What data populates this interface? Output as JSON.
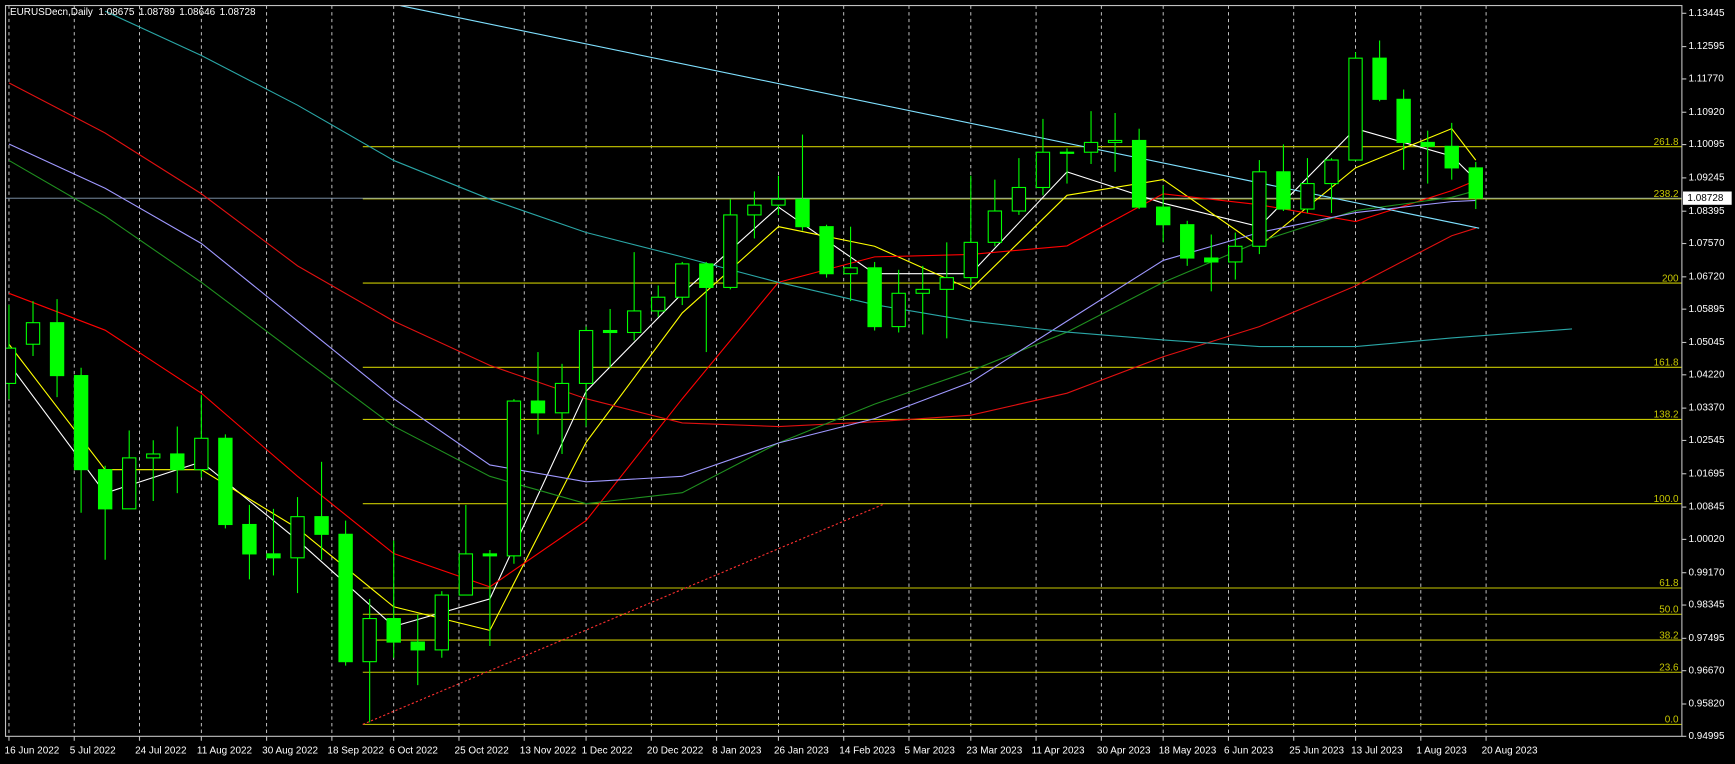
{
  "chart_data": {
    "type": "candlestick",
    "title": "EURUSDecn,Daily",
    "last_ohlc": [
      1.08675,
      1.08789,
      1.08646,
      1.08728
    ],
    "last_price": 1.08728,
    "xlim": [
      "2022-06-15",
      "2023-10-16"
    ],
    "ylim": [
      0.94995,
      1.13643
    ],
    "xticks": [
      {
        "value": "2022-06-16",
        "label": "16 Jun 2022"
      },
      {
        "value": "2022-07-05",
        "label": "5 Jul 2022"
      },
      {
        "value": "2022-07-24",
        "label": "24 Jul 2022"
      },
      {
        "value": "2022-08-11",
        "label": "11 Aug 2022"
      },
      {
        "value": "2022-08-30",
        "label": "30 Aug 2022"
      },
      {
        "value": "2022-09-18",
        "label": "18 Sep 2022"
      },
      {
        "value": "2022-10-06",
        "label": "6 Oct 2022"
      },
      {
        "value": "2022-10-25",
        "label": "25 Oct 2022"
      },
      {
        "value": "2022-11-13",
        "label": "13 Nov 2022"
      },
      {
        "value": "2022-12-01",
        "label": "1 Dec 2022"
      },
      {
        "value": "2022-12-20",
        "label": "20 Dec 2022"
      },
      {
        "value": "2023-01-08",
        "label": "8 Jan 2023"
      },
      {
        "value": "2023-01-26",
        "label": "26 Jan 2023"
      },
      {
        "value": "2023-02-14",
        "label": "14 Feb 2023"
      },
      {
        "value": "2023-03-05",
        "label": "5 Mar 2023"
      },
      {
        "value": "2023-03-23",
        "label": "23 Mar 2023"
      },
      {
        "value": "2023-04-11",
        "label": "11 Apr 2023"
      },
      {
        "value": "2023-04-30",
        "label": "30 Apr 2023"
      },
      {
        "value": "2023-05-18",
        "label": "18 May 2023"
      },
      {
        "value": "2023-06-06",
        "label": "6 Jun 2023"
      },
      {
        "value": "2023-06-25",
        "label": "25 Jun 2023"
      },
      {
        "value": "2023-07-13",
        "label": "13 Jul 2023"
      },
      {
        "value": "2023-08-01",
        "label": "1 Aug 2023"
      },
      {
        "value": "2023-08-20",
        "label": "20 Aug 2023"
      }
    ],
    "yticks": [
      1.13445,
      1.12595,
      {
        "value": 1.1177,
        "label": "1.11770"
      },
      {
        "value": 1.1092,
        "label": "1.10920"
      },
      1.10095,
      1.09245,
      1.08395,
      {
        "value": 1.0757,
        "label": "1.07570"
      },
      {
        "value": 1.0672,
        "label": "1.06720"
      },
      1.05895,
      1.05045,
      {
        "value": 1.0422,
        "label": "1.04220"
      },
      {
        "value": 1.0337,
        "label": "1.03370"
      },
      1.02545,
      1.01695,
      1.00845,
      {
        "value": 1.0002,
        "label": "1.00020"
      },
      {
        "value": 0.9917,
        "label": "0.99170"
      },
      0.98345,
      0.97495,
      {
        "value": 0.9667,
        "label": "0.96670"
      },
      {
        "value": 0.9582,
        "label": "0.95820"
      },
      0.94995
    ],
    "grid": true,
    "candle_color": "#00ff00",
    "candles": {
      "x": [
        "2022-06-16",
        "2022-06-23",
        "2022-06-30",
        "2022-07-07",
        "2022-07-14",
        "2022-07-21",
        "2022-07-28",
        "2022-08-04",
        "2022-08-11",
        "2022-08-18",
        "2022-08-25",
        "2022-09-01",
        "2022-09-08",
        "2022-09-15",
        "2022-09-22",
        "2022-09-29",
        "2022-10-06",
        "2022-10-13",
        "2022-10-20",
        "2022-10-27",
        "2022-11-03",
        "2022-11-10",
        "2022-11-17",
        "2022-11-24",
        "2022-12-01",
        "2022-12-08",
        "2022-12-15",
        "2022-12-22",
        "2022-12-29",
        "2023-01-05",
        "2023-01-12",
        "2023-01-19",
        "2023-01-26",
        "2023-02-02",
        "2023-02-09",
        "2023-02-16",
        "2023-02-23",
        "2023-03-02",
        "2023-03-09",
        "2023-03-16",
        "2023-03-23",
        "2023-03-30",
        "2023-04-06",
        "2023-04-13",
        "2023-04-20",
        "2023-04-27",
        "2023-05-04",
        "2023-05-11",
        "2023-05-18",
        "2023-05-25",
        "2023-06-01",
        "2023-06-08",
        "2023-06-15",
        "2023-06-22",
        "2023-06-29",
        "2023-07-06",
        "2023-07-13",
        "2023-07-20",
        "2023-07-27",
        "2023-08-03",
        "2023-08-10",
        "2023-08-17"
      ],
      "open": [
        1.04,
        1.05,
        1.0555,
        1.042,
        1.018,
        1.008,
        1.021,
        1.022,
        1.018,
        1.026,
        1.004,
        0.9965,
        0.9955,
        1.006,
        1.0015,
        0.969,
        0.98,
        0.974,
        0.972,
        0.986,
        0.9965,
        0.996,
        1.0355,
        1.0325,
        1.04,
        1.0535,
        1.053,
        1.0585,
        1.062,
        1.0705,
        1.0645,
        1.083,
        1.0855,
        1.087,
        1.08,
        1.068,
        1.0695,
        1.0545,
        1.063,
        1.064,
        1.067,
        1.076,
        1.084,
        1.09,
        1.099,
        1.099,
        1.1015,
        1.102,
        1.085,
        1.0805,
        1.072,
        1.071,
        1.075,
        1.094,
        1.0845,
        1.091,
        1.097,
        1.123,
        1.1125,
        1.1015,
        1.1005,
        1.095
      ],
      "high": [
        1.06,
        1.061,
        1.0615,
        1.044,
        1.019,
        1.028,
        1.0255,
        1.029,
        1.037,
        1.027,
        1.009,
        1.008,
        1.011,
        1.02,
        1.005,
        0.985,
        0.9999,
        0.981,
        0.987,
        1.009,
        0.9975,
        1.036,
        1.048,
        1.045,
        1.0545,
        1.059,
        1.0735,
        1.065,
        1.071,
        1.071,
        1.087,
        1.089,
        1.093,
        1.1035,
        1.0805,
        1.08,
        1.071,
        1.069,
        1.07,
        1.076,
        1.093,
        1.092,
        1.0975,
        1.1075,
        1.1,
        1.1095,
        1.109,
        1.105,
        1.0905,
        1.0815,
        1.078,
        1.0785,
        1.097,
        1.101,
        1.0975,
        1.0975,
        1.1245,
        1.1275,
        1.115,
        1.1045,
        1.1065,
        1.0965
      ],
      "low": [
        1.036,
        1.047,
        1.0365,
        1.007,
        0.995,
        1.008,
        1.01,
        1.012,
        1.016,
        1.003,
        0.99,
        0.991,
        0.9865,
        0.995,
        0.968,
        0.9535,
        0.97,
        0.963,
        0.97,
        0.986,
        0.973,
        0.994,
        1.027,
        1.022,
        1.029,
        1.044,
        1.051,
        1.057,
        1.06,
        1.048,
        1.064,
        1.077,
        1.083,
        1.079,
        1.067,
        1.061,
        1.0535,
        1.053,
        1.0525,
        1.0515,
        1.065,
        1.075,
        1.083,
        1.088,
        1.091,
        1.096,
        1.094,
        1.0845,
        1.076,
        1.07,
        1.0635,
        1.0665,
        1.073,
        1.084,
        1.0835,
        1.0835,
        1.097,
        1.112,
        1.0945,
        1.091,
        1.092,
        1.0845
      ],
      "close": [
        1.049,
        1.0555,
        1.042,
        1.018,
        1.008,
        1.021,
        1.022,
        1.018,
        1.026,
        1.004,
        0.9965,
        0.9955,
        1.006,
        1.0015,
        0.969,
        0.98,
        0.974,
        0.972,
        0.986,
        0.9965,
        0.996,
        1.0355,
        1.0325,
        1.04,
        1.0535,
        1.053,
        1.0585,
        1.062,
        1.0705,
        1.0645,
        1.083,
        1.0855,
        1.087,
        1.08,
        1.068,
        1.0695,
        1.0545,
        1.063,
        1.064,
        1.067,
        1.076,
        1.084,
        1.09,
        1.099,
        1.099,
        1.1015,
        1.102,
        1.085,
        1.0805,
        1.072,
        1.071,
        1.075,
        1.094,
        1.0845,
        1.091,
        1.097,
        1.123,
        1.1125,
        1.1015,
        1.1005,
        1.095,
        1.0873
      ]
    },
    "indicators": [
      {
        "color": "#ffffff",
        "x": [
          "2022-06-16",
          "2022-07-14",
          "2022-08-11",
          "2022-09-08",
          "2022-10-06",
          "2022-11-03",
          "2022-12-01",
          "2022-12-29",
          "2023-01-26",
          "2023-02-23",
          "2023-03-23",
          "2023-04-20",
          "2023-05-18",
          "2023-06-15",
          "2023-07-13",
          "2023-08-10",
          "2023-08-17"
        ],
        "values": [
          1.045,
          1.012,
          1.02,
          1.0,
          0.978,
          0.985,
          1.038,
          1.063,
          1.085,
          1.068,
          1.068,
          1.094,
          1.086,
          1.08,
          1.105,
          1.098,
          1.092
        ]
      },
      {
        "color": "#ffff00",
        "x": [
          "2022-06-16",
          "2022-07-14",
          "2022-08-11",
          "2022-09-08",
          "2022-10-06",
          "2022-11-03",
          "2022-12-01",
          "2022-12-29",
          "2023-01-26",
          "2023-02-23",
          "2023-03-23",
          "2023-04-20",
          "2023-05-18",
          "2023-06-15",
          "2023-07-13",
          "2023-08-10",
          "2023-08-17"
        ],
        "values": [
          1.05,
          1.018,
          1.018,
          1.003,
          0.983,
          0.977,
          1.025,
          1.058,
          1.08,
          1.075,
          1.064,
          1.088,
          1.092,
          1.075,
          1.095,
          1.105,
          1.097
        ]
      },
      {
        "color": "#ff0000",
        "x": [
          "2022-06-16",
          "2022-07-14",
          "2022-08-11",
          "2022-09-08",
          "2022-10-06",
          "2022-11-03",
          "2022-12-01",
          "2022-12-29",
          "2023-01-26",
          "2023-02-23",
          "2023-03-23",
          "2023-04-20",
          "2023-05-18",
          "2023-06-15",
          "2023-07-13",
          "2023-08-10",
          "2023-08-17"
        ],
        "values": [
          1.063,
          1.0536,
          1.0375,
          1.0163,
          0.9966,
          0.9881,
          1.005,
          1.0361,
          1.0658,
          1.0723,
          1.0729,
          1.0751,
          1.0884,
          1.0856,
          1.0813,
          1.0892,
          1.0918
        ]
      },
      {
        "color": "#e01010",
        "x": [
          "2022-06-16",
          "2022-07-14",
          "2022-08-11",
          "2022-09-08",
          "2022-10-06",
          "2022-11-03",
          "2022-12-01",
          "2022-12-29",
          "2023-01-26",
          "2023-02-23",
          "2023-03-23",
          "2023-04-20",
          "2023-05-18",
          "2023-06-15",
          "2023-07-13",
          "2023-08-10",
          "2023-08-17"
        ],
        "values": [
          1.1167,
          1.1039,
          1.0884,
          1.07,
          1.0559,
          1.0446,
          1.0361,
          1.0299,
          1.029,
          1.0302,
          1.0319,
          1.0375,
          1.0468,
          1.0545,
          1.0649,
          1.0777,
          1.0796
        ]
      },
      {
        "color": "#1f8f1f",
        "x": [
          "2022-06-16",
          "2022-07-14",
          "2022-08-11",
          "2022-09-08",
          "2022-10-06",
          "2022-11-03",
          "2022-12-01",
          "2022-12-29",
          "2023-01-26",
          "2023-02-23",
          "2023-03-23",
          "2023-04-20",
          "2023-05-18",
          "2023-06-15",
          "2023-07-13",
          "2023-08-10",
          "2023-08-17"
        ],
        "values": [
          1.0969,
          1.0827,
          1.0658,
          1.0474,
          1.0291,
          1.0163,
          1.0093,
          1.0121,
          1.0248,
          1.0347,
          1.0432,
          1.0531,
          1.0658,
          1.0762,
          1.0841,
          1.0875,
          1.0892
        ]
      },
      {
        "color": "#9f98ff",
        "x": [
          "2022-06-16",
          "2022-07-14",
          "2022-08-11",
          "2022-09-08",
          "2022-10-06",
          "2022-11-03",
          "2022-12-01",
          "2022-12-29",
          "2023-01-26",
          "2023-02-23",
          "2023-03-23",
          "2023-04-20",
          "2023-05-18",
          "2023-06-15",
          "2023-07-13",
          "2023-08-10",
          "2023-08-17"
        ],
        "values": [
          1.1011,
          1.0898,
          1.0757,
          1.0559,
          1.0361,
          1.0192,
          1.0149,
          1.0163,
          1.0248,
          1.031,
          1.0403,
          1.0559,
          1.0714,
          1.0785,
          1.0836,
          1.0864,
          1.0867
        ]
      },
      {
        "color": "#2aa6a6",
        "x": [
          "2022-07-14",
          "2022-08-11",
          "2022-09-08",
          "2022-10-06",
          "2022-11-03",
          "2022-12-01",
          "2022-12-29",
          "2023-01-26",
          "2023-02-23",
          "2023-03-23",
          "2023-04-20",
          "2023-05-18",
          "2023-06-15",
          "2023-07-13",
          "2023-08-10",
          "2023-09-14"
        ],
        "values": [
          1.135,
          1.1237,
          1.111,
          1.0969,
          1.087,
          1.0785,
          1.0723,
          1.0658,
          1.0601,
          1.0559,
          1.0531,
          1.0511,
          1.0494,
          1.0494,
          1.0516,
          1.0539
        ]
      }
    ],
    "trendlines": [
      {
        "color": "#7fe0ff",
        "style": "solid",
        "x": [
          "2022-10-08",
          "2023-08-18"
        ],
        "values": [
          1.1364,
          1.0796
        ]
      },
      {
        "color": "#ff3030",
        "style": "dotted",
        "x": [
          "2022-09-27",
          "2023-02-26"
        ],
        "values": [
          0.953,
          1.0093
        ]
      }
    ],
    "fibo": {
      "color": "#c8c800",
      "start": "2022-09-27",
      "levels": [
        {
          "label": "0.0",
          "price": 0.953
        },
        {
          "label": "23.6",
          "price": 0.9663
        },
        {
          "label": "38.2",
          "price": 0.9745
        },
        {
          "label": "50.0",
          "price": 0.9811
        },
        {
          "label": "61.8",
          "price": 0.9878
        },
        {
          "label": "100.0",
          "price": 1.0093
        },
        {
          "label": "138.2",
          "price": 1.0308
        },
        {
          "label": "161.8",
          "price": 1.0441
        },
        {
          "label": "200",
          "price": 1.0656
        },
        {
          "label": "238.2",
          "price": 1.0871
        },
        {
          "label": "261.8",
          "price": 1.1004
        }
      ]
    }
  }
}
